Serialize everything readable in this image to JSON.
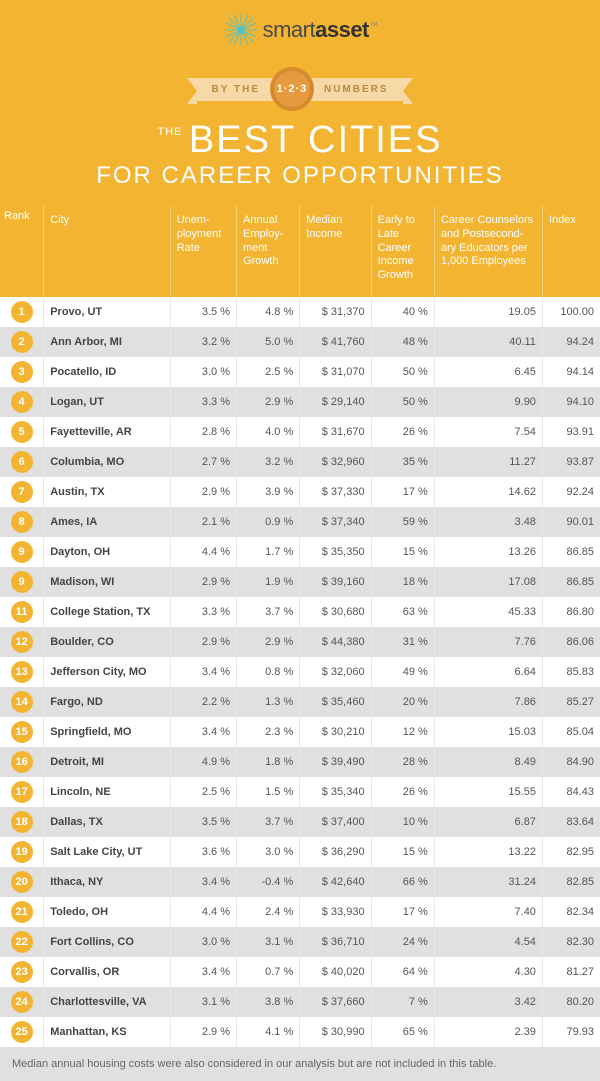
{
  "colors": {
    "header_bg": "#f3b431",
    "ribbon_bg": "#f7d9a8",
    "ribbon_text": "#b88a3f",
    "badge_bg": "#e59b3e",
    "badge_border": "#d68a2e",
    "row_even": "#ffffff",
    "row_odd": "#e0e0e0",
    "rank_badge_bg": "#f3b431",
    "title_text": "#ffffff",
    "grid_border": "#e8e8e8",
    "footnote_bg": "#e0e0e0"
  },
  "logo": {
    "light": "smart",
    "bold": "asset",
    "tm": "™"
  },
  "ribbon": {
    "left": "BY THE",
    "center": "1·2·3",
    "right": "NUMBERS"
  },
  "title": {
    "the": "THE",
    "main": "BEST CITIES",
    "sub": "FOR CAREER OPPORTUNITIES"
  },
  "columns": [
    "Rank",
    "City",
    "Unem-\nployment Rate",
    "Annual Employ-\nment Growth",
    "Median Income",
    "Early to Late Career Income Growth",
    "Career Counselors and Postsecond-\nary Educators per 1,000 Employees",
    "Index"
  ],
  "rows": [
    {
      "rank": "1",
      "city": "Provo, UT",
      "unemp": "3.5 %",
      "growth": "4.8 %",
      "median": "$  31,370",
      "career": "40 %",
      "coun": "19.05",
      "index": "100.00"
    },
    {
      "rank": "2",
      "city": "Ann Arbor, MI",
      "unemp": "3.2 %",
      "growth": "5.0 %",
      "median": "$  41,760",
      "career": "48 %",
      "coun": "40.11",
      "index": "94.24"
    },
    {
      "rank": "3",
      "city": "Pocatello, ID",
      "unemp": "3.0 %",
      "growth": "2.5 %",
      "median": "$  31,070",
      "career": "50 %",
      "coun": "6.45",
      "index": "94.14"
    },
    {
      "rank": "4",
      "city": "Logan, UT",
      "unemp": "3.3 %",
      "growth": "2.9 %",
      "median": "$  29,140",
      "career": "50 %",
      "coun": "9.90",
      "index": "94.10"
    },
    {
      "rank": "5",
      "city": "Fayetteville, AR",
      "unemp": "2.8 %",
      "growth": "4.0 %",
      "median": "$  31,670",
      "career": "26 %",
      "coun": "7.54",
      "index": "93.91"
    },
    {
      "rank": "6",
      "city": "Columbia, MO",
      "unemp": "2.7 %",
      "growth": "3.2 %",
      "median": "$ 32,960",
      "career": "35 %",
      "coun": "11.27",
      "index": "93.87"
    },
    {
      "rank": "7",
      "city": "Austin, TX",
      "unemp": "2.9 %",
      "growth": "3.9 %",
      "median": "$  37,330",
      "career": "17 %",
      "coun": "14.62",
      "index": "92.24"
    },
    {
      "rank": "8",
      "city": "Ames, IA",
      "unemp": "2.1 %",
      "growth": "0.9 %",
      "median": "$  37,340",
      "career": "59 %",
      "coun": "3.48",
      "index": "90.01"
    },
    {
      "rank": "9",
      "city": "Dayton, OH",
      "unemp": "4.4 %",
      "growth": "1.7 %",
      "median": "$ 35,350",
      "career": "15 %",
      "coun": "13.26",
      "index": "86.85"
    },
    {
      "rank": "9",
      "city": "Madison, WI",
      "unemp": "2.9 %",
      "growth": "1.9 %",
      "median": "$  39,160",
      "career": "18 %",
      "coun": "17.08",
      "index": "86.85"
    },
    {
      "rank": "11",
      "city": "College Station, TX",
      "unemp": "3.3 %",
      "growth": "3.7 %",
      "median": "$ 30,680",
      "career": "63 %",
      "coun": "45.33",
      "index": "86.80"
    },
    {
      "rank": "12",
      "city": "Boulder, CO",
      "unemp": "2.9 %",
      "growth": "2.9 %",
      "median": "$ 44,380",
      "career": "31 %",
      "coun": "7.76",
      "index": "86.06"
    },
    {
      "rank": "13",
      "city": "Jefferson City, MO",
      "unemp": "3.4 %",
      "growth": "0.8 %",
      "median": "$ 32,060",
      "career": "49 %",
      "coun": "6.64",
      "index": "85.83"
    },
    {
      "rank": "14",
      "city": "Fargo, ND",
      "unemp": "2.2 %",
      "growth": "1.3 %",
      "median": "$ 35,460",
      "career": "20 %",
      "coun": "7.86",
      "index": "85.27"
    },
    {
      "rank": "15",
      "city": "Springfield, MO",
      "unemp": "3.4 %",
      "growth": "2.3 %",
      "median": "$  30,210",
      "career": "12 %",
      "coun": "15.03",
      "index": "85.04"
    },
    {
      "rank": "16",
      "city": "Detroit, MI",
      "unemp": "4.9 %",
      "growth": "1.8 %",
      "median": "$ 39,490",
      "career": "28 %",
      "coun": "8.49",
      "index": "84.90"
    },
    {
      "rank": "17",
      "city": "Lincoln, NE",
      "unemp": "2.5 %",
      "growth": "1.5 %",
      "median": "$ 35,340",
      "career": "26 %",
      "coun": "15.55",
      "index": "84.43"
    },
    {
      "rank": "18",
      "city": "Dallas, TX",
      "unemp": "3.5 %",
      "growth": "3.7 %",
      "median": "$  37,400",
      "career": "10 %",
      "coun": "6.87",
      "index": "83.64"
    },
    {
      "rank": "19",
      "city": "Salt Lake City, UT",
      "unemp": "3.6 %",
      "growth": "3.0 %",
      "median": "$ 36,290",
      "career": "15 %",
      "coun": "13.22",
      "index": "82.95"
    },
    {
      "rank": "20",
      "city": "Ithaca, NY",
      "unemp": "3.4 %",
      "growth": "-0.4 %",
      "median": "$  42,640",
      "career": "66 %",
      "coun": "31.24",
      "index": "82.85"
    },
    {
      "rank": "21",
      "city": "Toledo, OH",
      "unemp": "4.4 %",
      "growth": "2.4 %",
      "median": "$ 33,930",
      "career": "17 %",
      "coun": "7.40",
      "index": "82.34"
    },
    {
      "rank": "22",
      "city": "Fort Collins, CO",
      "unemp": "3.0 %",
      "growth": "3.1 %",
      "median": "$  36,710",
      "career": "24 %",
      "coun": "4.54",
      "index": "82.30"
    },
    {
      "rank": "23",
      "city": "Corvallis, OR",
      "unemp": "3.4 %",
      "growth": "0.7 %",
      "median": "$ 40,020",
      "career": "64 %",
      "coun": "4.30",
      "index": "81.27"
    },
    {
      "rank": "24",
      "city": "Charlottesville, VA",
      "unemp": "3.1 %",
      "growth": "3.8 %",
      "median": "$  37,660",
      "career": "7 %",
      "coun": "3.42",
      "index": "80.20"
    },
    {
      "rank": "25",
      "city": "Manhattan, KS",
      "unemp": "2.9 %",
      "growth": "4.1 %",
      "median": "$ 30,990",
      "career": "65 %",
      "coun": "2.39",
      "index": "79.93"
    }
  ],
  "footnote": "Median annual housing costs were also considered in our analysis but are not included in this table."
}
